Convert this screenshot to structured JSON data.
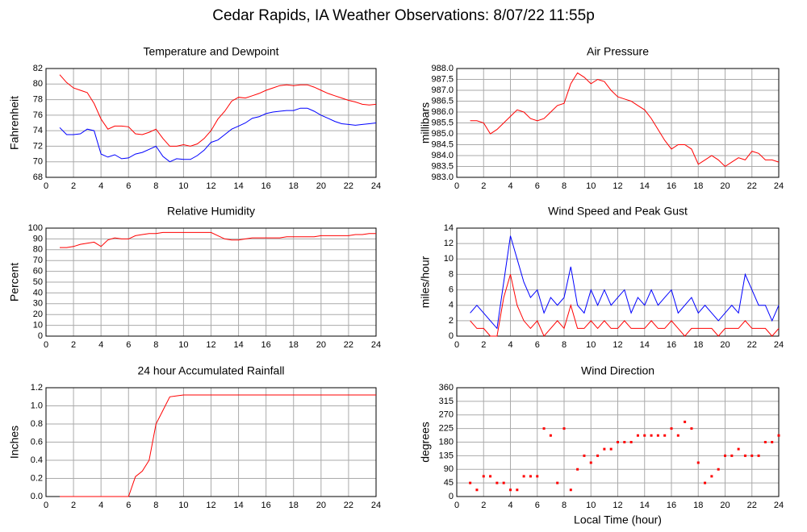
{
  "title": "Cedar Rapids, IA Weather Observations: 8/07/22 11:55p",
  "chart_data": [
    {
      "type": "line",
      "title": "Temperature and Dewpoint",
      "ylabel": "Fahrenheit",
      "x": [
        1,
        1.5,
        2,
        2.5,
        3,
        3.5,
        4,
        4.5,
        5,
        5.5,
        6,
        6.5,
        7,
        7.5,
        8,
        8.5,
        9,
        9.5,
        10,
        10.5,
        11,
        11.5,
        12,
        12.5,
        13,
        13.5,
        14,
        14.5,
        15,
        15.5,
        16,
        16.5,
        17,
        17.5,
        18,
        18.5,
        19,
        19.5,
        20,
        20.5,
        21,
        21.5,
        22,
        22.5,
        23,
        23.5,
        24
      ],
      "series": [
        {
          "color": "#ff0000",
          "values": [
            81.2,
            80.2,
            79.5,
            79.2,
            78.9,
            77.5,
            75.5,
            74.2,
            74.6,
            74.6,
            74.5,
            73.6,
            73.5,
            73.8,
            74.2,
            73.0,
            72.0,
            72.0,
            72.2,
            72.0,
            72.3,
            73.0,
            74.0,
            75.5,
            76.5,
            77.8,
            78.3,
            78.2,
            78.5,
            78.8,
            79.2,
            79.5,
            79.8,
            79.9,
            79.8,
            79.9,
            79.9,
            79.6,
            79.2,
            78.8,
            78.5,
            78.2,
            77.9,
            77.7,
            77.4,
            77.3,
            77.4
          ]
        },
        {
          "color": "#0000ff",
          "values": [
            74.4,
            73.5,
            73.5,
            73.6,
            74.2,
            74.0,
            71.0,
            70.6,
            70.9,
            70.4,
            70.5,
            71.0,
            71.2,
            71.6,
            72.0,
            70.7,
            70.0,
            70.4,
            70.3,
            70.3,
            70.8,
            71.5,
            72.5,
            72.8,
            73.5,
            74.2,
            74.6,
            75.0,
            75.6,
            75.8,
            76.2,
            76.4,
            76.5,
            76.6,
            76.6,
            76.9,
            76.9,
            76.5,
            76.0,
            75.6,
            75.2,
            74.9,
            74.8,
            74.7,
            74.8,
            74.9,
            75.0
          ]
        }
      ],
      "xlim": [
        0,
        24
      ],
      "xticks": [
        0,
        2,
        4,
        6,
        8,
        10,
        12,
        14,
        16,
        18,
        20,
        22,
        24
      ],
      "ylim": [
        68,
        82
      ],
      "yticks": [
        68,
        70,
        72,
        74,
        76,
        78,
        80,
        82
      ],
      "grid": true
    },
    {
      "type": "line",
      "title": "Air Pressure",
      "ylabel": "millibars",
      "x": [
        1,
        1.5,
        2,
        2.5,
        3,
        3.5,
        4,
        4.5,
        5,
        5.5,
        6,
        6.5,
        7,
        7.5,
        8,
        8.5,
        9,
        9.5,
        10,
        10.5,
        11,
        11.5,
        12,
        12.5,
        13,
        13.5,
        14,
        14.5,
        15,
        15.5,
        16,
        16.5,
        17,
        17.5,
        18,
        18.5,
        19,
        19.5,
        20,
        20.5,
        21,
        21.5,
        22,
        22.5,
        23,
        23.5,
        24
      ],
      "color": "#ff0000",
      "values": [
        985.6,
        985.6,
        985.5,
        985.0,
        985.2,
        985.5,
        985.8,
        986.1,
        986.0,
        985.7,
        985.6,
        985.7,
        986.0,
        986.3,
        986.4,
        987.3,
        987.8,
        987.6,
        987.3,
        987.5,
        987.4,
        987.0,
        986.7,
        986.6,
        986.5,
        986.3,
        986.1,
        985.7,
        985.2,
        984.7,
        984.3,
        984.5,
        984.5,
        984.3,
        983.6,
        983.8,
        984.0,
        983.8,
        983.5,
        983.7,
        983.9,
        983.8,
        984.2,
        984.1,
        983.8,
        983.8,
        983.7
      ],
      "xlim": [
        0,
        24
      ],
      "xticks": [
        0,
        2,
        4,
        6,
        8,
        10,
        12,
        14,
        16,
        18,
        20,
        22,
        24
      ],
      "ylim": [
        983,
        988
      ],
      "yticks": [
        {
          "value": 983,
          "label": "983.0"
        },
        983.5,
        {
          "value": 984,
          "label": "984.0"
        },
        984.5,
        {
          "value": 985,
          "label": "985.0"
        },
        985.5,
        {
          "value": 986,
          "label": "986.0"
        },
        986.5,
        {
          "value": 987,
          "label": "987.0"
        },
        987.5,
        {
          "value": 988,
          "label": "988.0"
        }
      ],
      "grid": true
    },
    {
      "type": "line",
      "title": "Relative Humidity",
      "ylabel": "Percent",
      "x": [
        1,
        1.5,
        2,
        2.5,
        3,
        3.5,
        4,
        4.5,
        5,
        5.5,
        6,
        6.5,
        7,
        7.5,
        8,
        8.5,
        9,
        9.5,
        10,
        10.5,
        11,
        11.5,
        12,
        12.5,
        13,
        13.5,
        14,
        14.5,
        15,
        15.5,
        16,
        16.5,
        17,
        17.5,
        18,
        18.5,
        19,
        19.5,
        20,
        20.5,
        21,
        21.5,
        22,
        22.5,
        23,
        23.5,
        24
      ],
      "color": "#ff0000",
      "values": [
        82,
        82,
        83,
        85,
        86,
        87,
        83,
        89,
        91,
        90,
        90,
        93,
        94,
        95,
        95,
        96,
        96,
        96,
        96,
        96,
        96,
        96,
        96,
        93,
        90,
        89,
        89,
        90,
        91,
        91,
        91,
        91,
        91,
        92,
        92,
        92,
        92,
        92,
        93,
        93,
        93,
        93,
        93,
        94,
        94,
        95,
        95
      ],
      "xlim": [
        0,
        24
      ],
      "xticks": [
        0,
        2,
        4,
        6,
        8,
        10,
        12,
        14,
        16,
        18,
        20,
        22,
        24
      ],
      "ylim": [
        0,
        100
      ],
      "yticks": [
        0,
        10,
        20,
        30,
        40,
        50,
        60,
        70,
        80,
        90,
        100
      ],
      "grid": true
    },
    {
      "type": "line",
      "title": "Wind Speed and Peak Gust",
      "ylabel": "miles/hour",
      "x": [
        1,
        1.5,
        2,
        2.5,
        3,
        3.5,
        4,
        4.5,
        5,
        5.5,
        6,
        6.5,
        7,
        7.5,
        8,
        8.5,
        9,
        9.5,
        10,
        10.5,
        11,
        11.5,
        12,
        12.5,
        13,
        13.5,
        14,
        14.5,
        15,
        15.5,
        16,
        16.5,
        17,
        17.5,
        18,
        18.5,
        19,
        19.5,
        20,
        20.5,
        21,
        21.5,
        22,
        22.5,
        23,
        23.5,
        24
      ],
      "series": [
        {
          "color": "#0000ff",
          "values": [
            3,
            4,
            3,
            2,
            1,
            7,
            13,
            10,
            7,
            5,
            6,
            3,
            5,
            4,
            5,
            9,
            4,
            3,
            6,
            4,
            6,
            4,
            5,
            6,
            3,
            5,
            4,
            6,
            4,
            5,
            6,
            3,
            4,
            5,
            3,
            4,
            3,
            2,
            3,
            4,
            3,
            8,
            6,
            4,
            4,
            2,
            4
          ]
        },
        {
          "color": "#ff0000",
          "values": [
            2,
            1,
            1,
            0,
            0,
            5,
            8,
            4,
            2,
            1,
            2,
            0,
            1,
            2,
            1,
            4,
            1,
            1,
            2,
            1,
            2,
            1,
            1,
            2,
            1,
            1,
            1,
            2,
            1,
            1,
            2,
            1,
            0,
            1,
            1,
            1,
            1,
            0,
            1,
            1,
            1,
            2,
            1,
            1,
            1,
            0,
            1
          ]
        }
      ],
      "xlim": [
        0,
        24
      ],
      "xticks": [
        0,
        2,
        4,
        6,
        8,
        10,
        12,
        14,
        16,
        18,
        20,
        22,
        24
      ],
      "ylim": [
        0,
        14
      ],
      "yticks": [
        0,
        2,
        4,
        6,
        8,
        10,
        12,
        14
      ],
      "grid": true
    },
    {
      "type": "line",
      "title": "24 hour Accumulated Rainfall",
      "ylabel": "Inches",
      "x": [
        1,
        1.5,
        2,
        2.5,
        3,
        3.5,
        4,
        4.5,
        5,
        5.5,
        6,
        6.5,
        7,
        7.5,
        8,
        8.5,
        9,
        9.5,
        10,
        10.5,
        11,
        11.5,
        12,
        12.5,
        13,
        13.5,
        14,
        14.5,
        15,
        15.5,
        16,
        16.5,
        17,
        17.5,
        18,
        18.5,
        19,
        19.5,
        20,
        20.5,
        21,
        21.5,
        22,
        22.5,
        23,
        23.5,
        24
      ],
      "color": "#ff0000",
      "values": [
        0,
        0,
        0,
        0,
        0,
        0,
        0,
        0,
        0,
        0,
        0,
        0.22,
        0.28,
        0.4,
        0.8,
        0.95,
        1.1,
        1.11,
        1.12,
        1.12,
        1.12,
        1.12,
        1.12,
        1.12,
        1.12,
        1.12,
        1.12,
        1.12,
        1.12,
        1.12,
        1.12,
        1.12,
        1.12,
        1.12,
        1.12,
        1.12,
        1.12,
        1.12,
        1.12,
        1.12,
        1.12,
        1.12,
        1.12,
        1.12,
        1.12,
        1.12,
        1.12
      ],
      "xlim": [
        0,
        24
      ],
      "xticks": [
        0,
        2,
        4,
        6,
        8,
        10,
        12,
        14,
        16,
        18,
        20,
        22,
        24
      ],
      "ylim": [
        0,
        1.2
      ],
      "yticks": [
        {
          "value": 0,
          "label": "0.0"
        },
        0.2,
        0.4,
        0.6,
        0.8,
        {
          "value": 1,
          "label": "1.0"
        },
        1.2
      ],
      "grid": true
    },
    {
      "type": "scatter",
      "title": "Wind Direction",
      "ylabel": "degrees",
      "xlabel": "Local Time (hour)",
      "x": [
        1,
        1.5,
        2,
        2.5,
        3,
        3.5,
        4,
        4.5,
        5,
        5.5,
        6,
        6.5,
        7,
        7.5,
        8,
        8.5,
        9,
        9.5,
        10,
        10.5,
        11,
        11.5,
        12,
        12.5,
        13,
        13.5,
        14,
        14.5,
        15,
        15.5,
        16,
        16.5,
        17,
        17.5,
        18,
        18.5,
        19,
        19.5,
        20,
        20.5,
        21,
        21.5,
        22,
        22.5,
        23,
        23.5,
        24
      ],
      "color": "#ff0000",
      "values": [
        45,
        22,
        67,
        67,
        45,
        45,
        22,
        22,
        67,
        67,
        67,
        225,
        202,
        45,
        225,
        22,
        90,
        135,
        112,
        135,
        157,
        157,
        180,
        180,
        180,
        202,
        202,
        202,
        202,
        202,
        225,
        202,
        247,
        225,
        112,
        45,
        67,
        90,
        135,
        135,
        157,
        135,
        135,
        135,
        180,
        180,
        202
      ],
      "xlim": [
        0,
        24
      ],
      "xticks": [
        0,
        2,
        4,
        6,
        8,
        10,
        12,
        14,
        16,
        18,
        20,
        22,
        24
      ],
      "ylim": [
        0,
        360
      ],
      "yticks": [
        0,
        45,
        90,
        135,
        180,
        225,
        270,
        315,
        360
      ],
      "grid": true
    }
  ]
}
